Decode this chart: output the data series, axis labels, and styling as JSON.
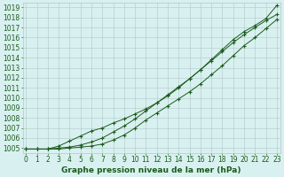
{
  "title": "Graphe pression niveau de la mer (hPa)",
  "ylabel_values": [
    1005,
    1006,
    1007,
    1008,
    1009,
    1010,
    1011,
    1012,
    1013,
    1014,
    1015,
    1016,
    1017,
    1018,
    1019
  ],
  "xlim": [
    -0.3,
    23.3
  ],
  "ylim": [
    1004.5,
    1019.5
  ],
  "x": [
    0,
    1,
    2,
    3,
    4,
    5,
    6,
    7,
    8,
    9,
    10,
    11,
    12,
    13,
    14,
    15,
    16,
    17,
    18,
    19,
    20,
    21,
    22,
    23
  ],
  "line1": [
    1004.9,
    1004.9,
    1004.9,
    1004.9,
    1005.0,
    1005.1,
    1005.2,
    1005.4,
    1005.8,
    1006.3,
    1007.0,
    1007.8,
    1008.5,
    1009.2,
    1009.9,
    1010.6,
    1011.4,
    1012.3,
    1013.2,
    1014.2,
    1015.2,
    1016.0,
    1016.9,
    1017.8
  ],
  "line2": [
    1004.9,
    1004.9,
    1004.9,
    1005.0,
    1005.1,
    1005.3,
    1005.6,
    1006.0,
    1006.6,
    1007.2,
    1007.9,
    1008.7,
    1009.5,
    1010.3,
    1011.1,
    1011.9,
    1012.8,
    1013.7,
    1014.6,
    1015.5,
    1016.3,
    1017.0,
    1017.7,
    1018.3
  ],
  "line3": [
    1004.9,
    1004.9,
    1004.9,
    1005.2,
    1005.7,
    1006.2,
    1006.7,
    1007.0,
    1007.5,
    1007.9,
    1008.4,
    1008.9,
    1009.5,
    1010.2,
    1011.0,
    1011.9,
    1012.8,
    1013.8,
    1014.8,
    1015.8,
    1016.6,
    1017.2,
    1017.9,
    1019.2
  ],
  "line_color": "#1a5c1a",
  "marker": "+",
  "marker_size": 3,
  "marker_lw": 0.8,
  "line_width": 0.7,
  "bg_color": "#d9f0f0",
  "grid_color": "#b0c8c8",
  "tick_fontsize": 5.5,
  "title_fontsize": 6.5
}
